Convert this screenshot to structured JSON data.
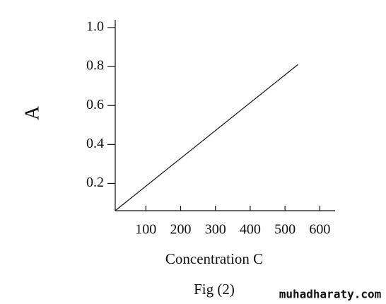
{
  "chart_data": {
    "type": "line",
    "x_label": "Concentration C",
    "y_label": "A",
    "caption": "Fig (2)",
    "watermark": "muhadharaty.com",
    "x": [
      12,
      537
    ],
    "series": [
      {
        "values": [
          0.06,
          0.81
        ],
        "color": "#111111"
      }
    ],
    "xlim": [
      12,
      644
    ],
    "ylim": [
      0.06,
      1.04
    ],
    "xticks": [
      100,
      200,
      300,
      400,
      500,
      600
    ],
    "yticks": [
      0.2,
      0.4,
      0.6,
      0.8,
      {
        "value": 1,
        "label": "1.0"
      }
    ]
  }
}
